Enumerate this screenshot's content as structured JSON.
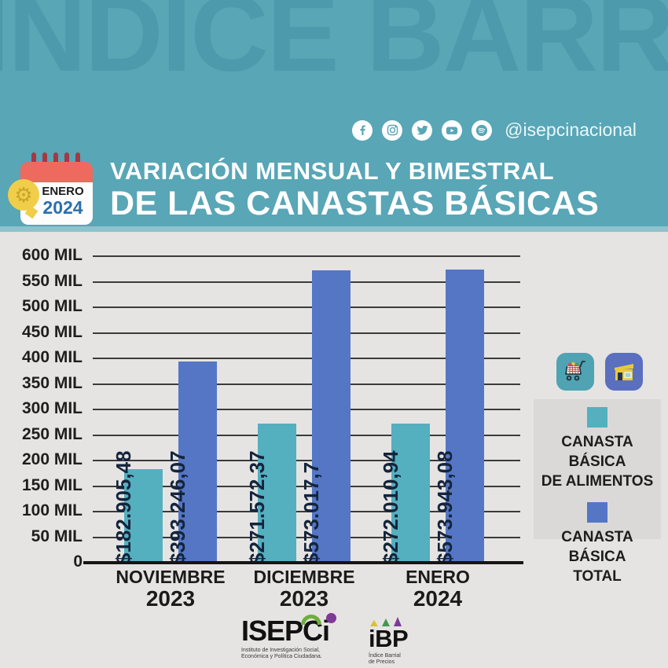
{
  "header": {
    "watermark": "ÍNDICE BARRIAL",
    "social_handle": "@isepcinacional",
    "social_icons": [
      "facebook-icon",
      "instagram-icon",
      "twitter-icon",
      "youtube-icon",
      "spotify-icon"
    ],
    "calendar": {
      "month": "ENERO",
      "year": "2024"
    },
    "title_line1": "VARIACIÓN MENSUAL Y BIMESTRAL",
    "title_line2": "DE LAS CANASTAS BÁSICAS"
  },
  "chart_data": {
    "type": "bar",
    "title": "VARIACIÓN MENSUAL Y BIMESTRAL DE LAS CANASTAS BÁSICAS",
    "ylim": [
      0,
      600000
    ],
    "grid": true,
    "legend_position": "right",
    "y_ticks": [
      {
        "value": 0,
        "label": "0"
      },
      {
        "value": 50000,
        "label": "50 MIL"
      },
      {
        "value": 100000,
        "label": "100 MIL"
      },
      {
        "value": 150000,
        "label": "150 MIL"
      },
      {
        "value": 200000,
        "label": "200 MIL"
      },
      {
        "value": 250000,
        "label": "250 MIL"
      },
      {
        "value": 300000,
        "label": "300 MIL"
      },
      {
        "value": 350000,
        "label": "350 MIL"
      },
      {
        "value": 400000,
        "label": "400 MIL"
      },
      {
        "value": 450000,
        "label": "450 MIL"
      },
      {
        "value": 500000,
        "label": "500 MIL"
      },
      {
        "value": 550000,
        "label": "550 MIL"
      },
      {
        "value": 600000,
        "label": "600 MIL"
      }
    ],
    "categories": [
      {
        "month": "NOVIEMBRE",
        "year": "2023",
        "key": "noviembre-2023"
      },
      {
        "month": "DICIEMBRE",
        "year": "2023",
        "key": "diciembre-2023"
      },
      {
        "month": "ENERO",
        "year": "2024",
        "key": "enero-2024"
      }
    ],
    "series": [
      {
        "name": "CANASTA BÁSICA DE ALIMENTOS",
        "key": "canasta-basica-alimentos",
        "color": "#54AFBF",
        "values": [
          182905.48,
          271572.37,
          272010.94
        ],
        "labels": [
          "$182.905,48",
          "$271.572,37",
          "$272.010,94"
        ]
      },
      {
        "name": "CANASTA BÁSICA TOTAL",
        "key": "canasta-basica-total",
        "color": "#5476C5",
        "values": [
          393246.07,
          573017.7,
          573943.08
        ],
        "labels": [
          "$393.246,07",
          "$573.017,7",
          "$573.943,08"
        ]
      }
    ]
  },
  "legend": {
    "icons": [
      "shopping-cart-icon",
      "store-icon"
    ],
    "items": [
      {
        "label": "CANASTA BÁSICA\nDE ALIMENTOS",
        "color": "#54AFBF"
      },
      {
        "label": "CANASTA BÁSICA\nTOTAL",
        "color": "#5476C5"
      }
    ]
  },
  "footer": {
    "isepci": {
      "name": "ISEPCi",
      "tagline": "Instituto de Investigación Social,\nEconómica y Política Ciudadana."
    },
    "ibp": {
      "name": "iBP",
      "tagline": "Índice Barrial\nde Precios"
    }
  }
}
